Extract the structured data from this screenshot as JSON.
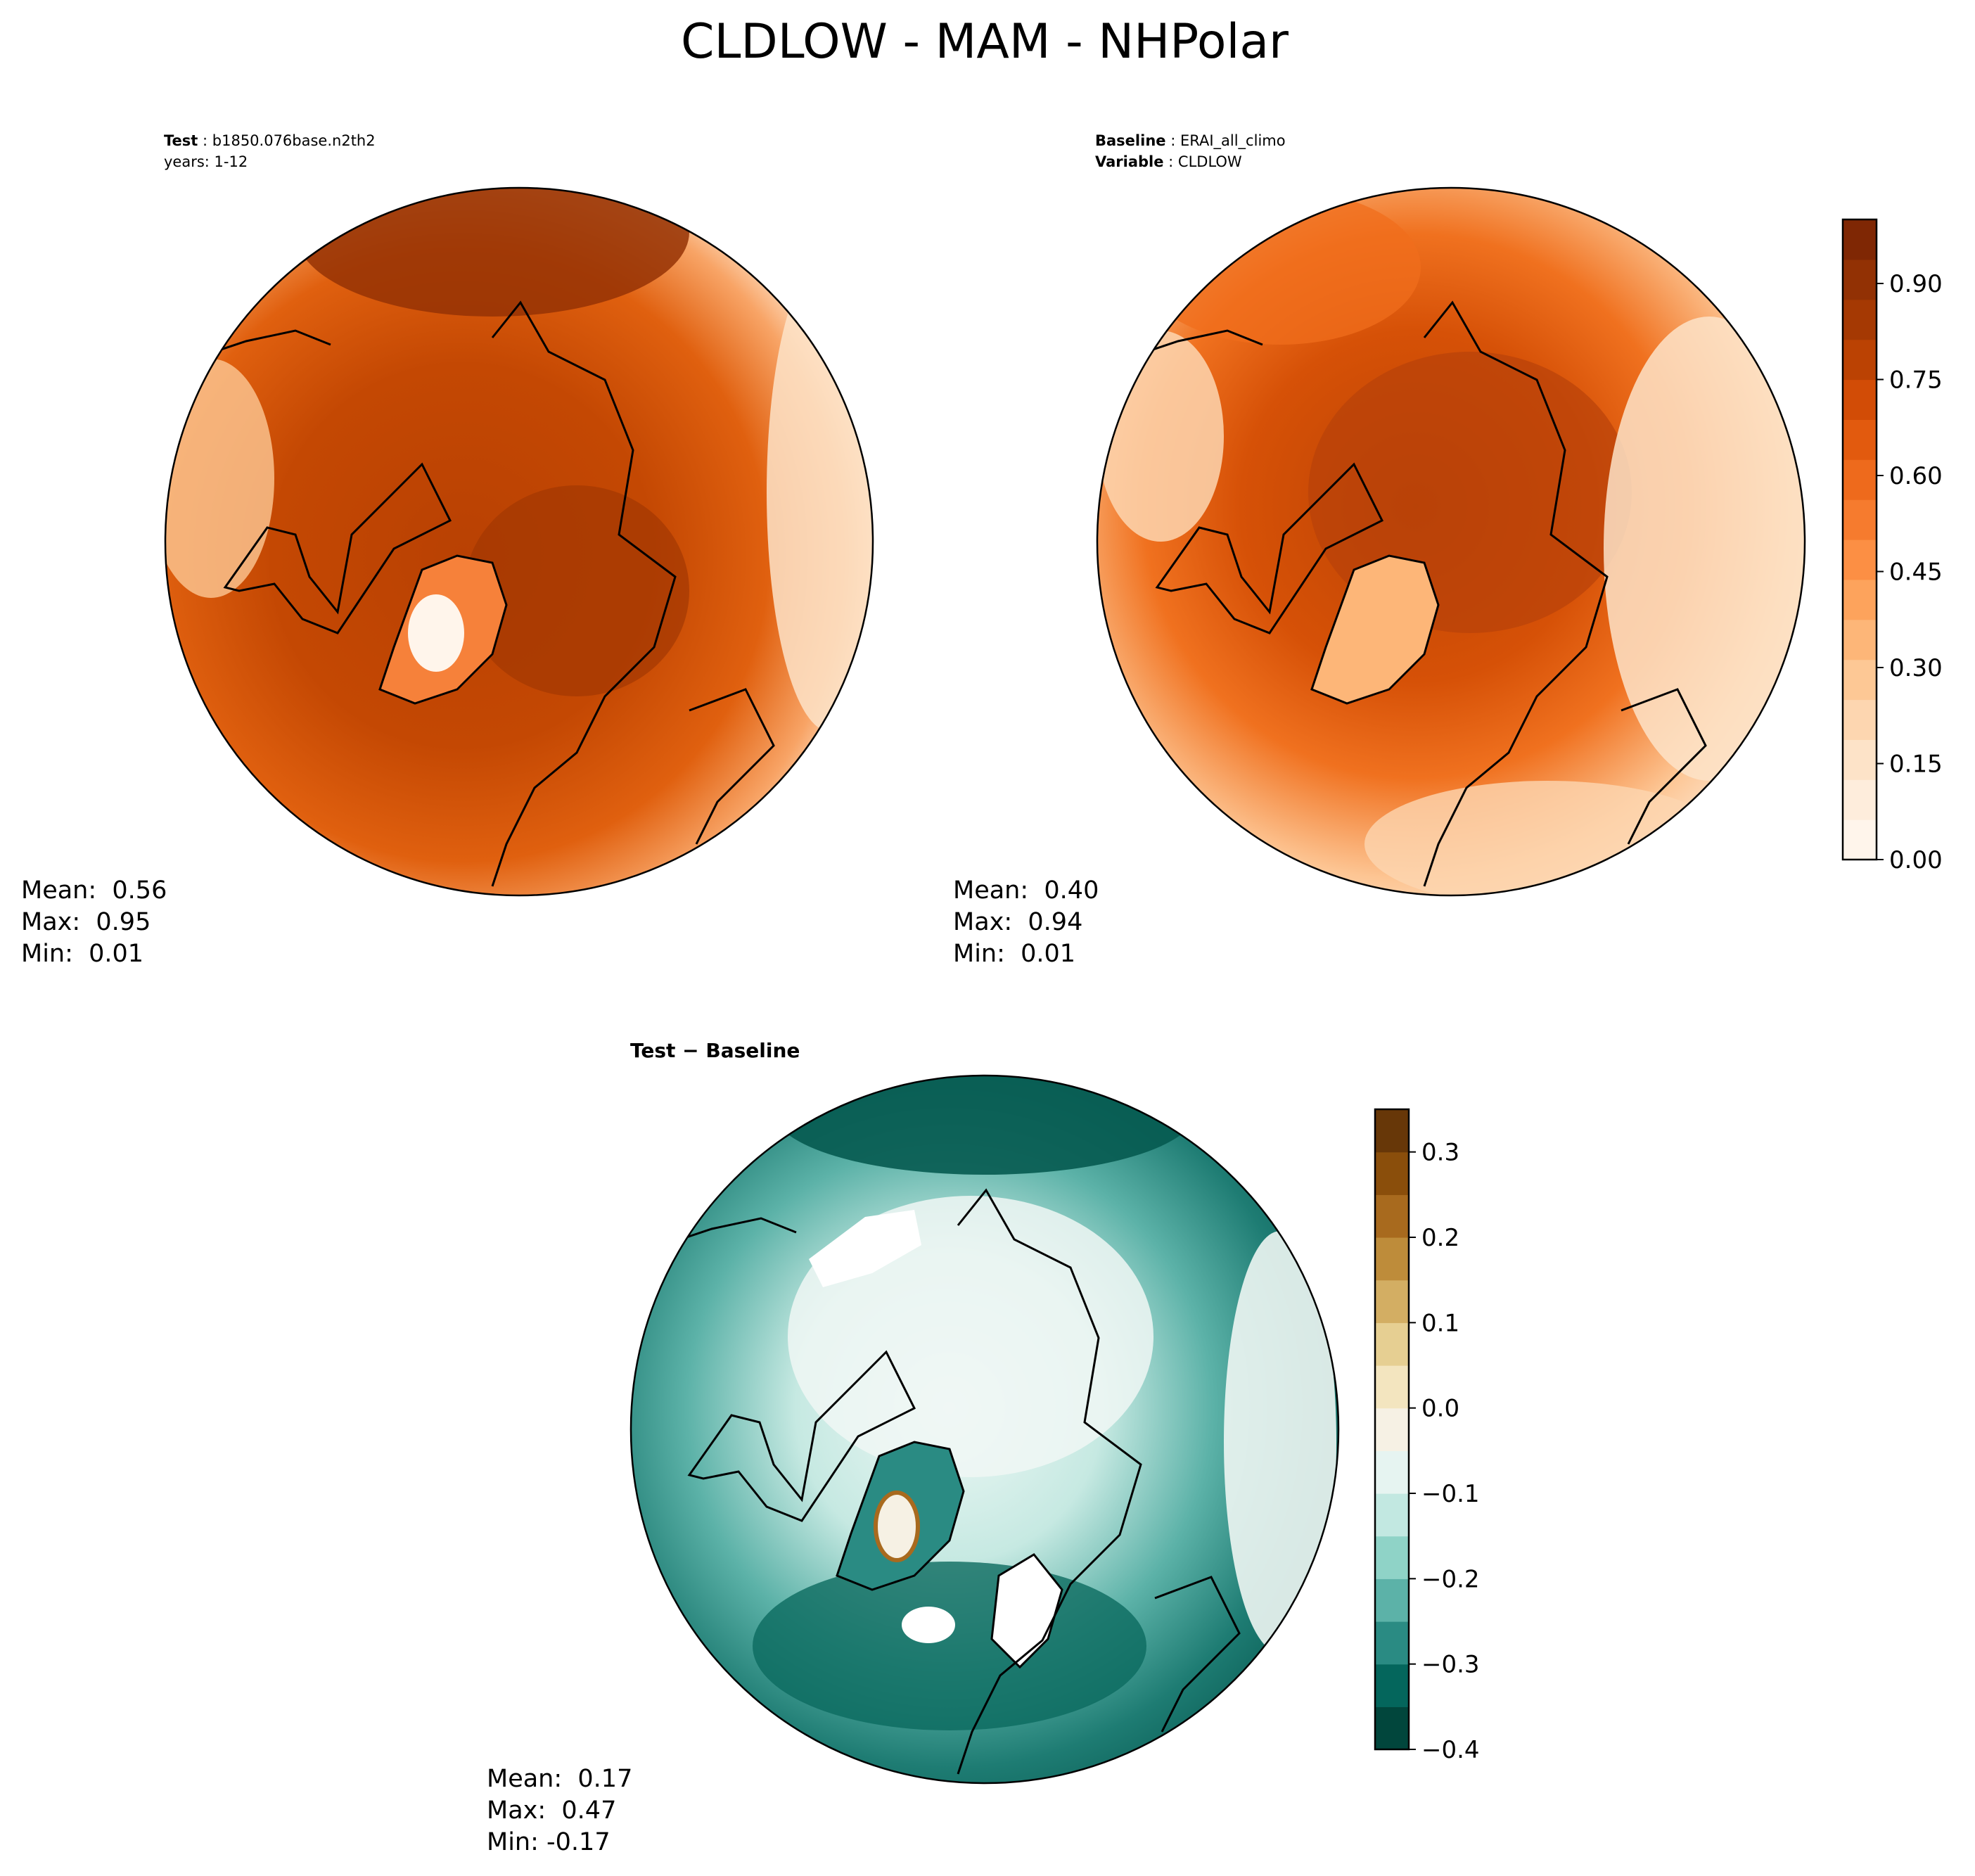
{
  "figure": {
    "title": "CLDLOW - MAM - NHPolar"
  },
  "panels": {
    "test": {
      "header_key1": "Test",
      "header_val1": "b1850.076base.n2th2",
      "header_line2": "years: 1-12",
      "stats": [
        "Mean:  0.56",
        "Max:  0.95",
        "Min:  0.01"
      ]
    },
    "baseline": {
      "header_key1": "Baseline",
      "header_val1": "ERAI_all_climo",
      "header_key2": "Variable",
      "header_val2": "CLDLOW",
      "stats": [
        "Mean:  0.40",
        "Max:  0.94",
        "Min:  0.01"
      ]
    },
    "diff": {
      "header": "Test − Baseline",
      "stats": [
        "Mean:  0.17",
        "Max:  0.47",
        "Min: -0.17"
      ]
    }
  },
  "chart_data": [
    {
      "type": "heatmap",
      "projection": "north-polar-stereographic",
      "panel": "Test",
      "mean": 0.56,
      "max": 0.95,
      "min": 0.01,
      "colormap": "Oranges"
    },
    {
      "type": "heatmap",
      "projection": "north-polar-stereographic",
      "panel": "Baseline",
      "mean": 0.4,
      "max": 0.94,
      "min": 0.01,
      "colormap": "Oranges"
    },
    {
      "type": "heatmap",
      "projection": "north-polar-stereographic",
      "panel": "Test - Baseline",
      "mean": 0.17,
      "max": 0.47,
      "min": -0.17,
      "colormap": "BrBG"
    }
  ],
  "colorbars": {
    "sequential": {
      "range": [
        0.0,
        1.0
      ],
      "ticks": [
        "0.00",
        "0.15",
        "0.30",
        "0.45",
        "0.60",
        "0.75",
        "0.90"
      ],
      "tick_values": [
        0.0,
        0.15,
        0.3,
        0.45,
        0.6,
        0.75,
        0.9
      ],
      "colors": [
        "#fff5eb",
        "#feeddc",
        "#fde3c8",
        "#fdd6b0",
        "#fdc895",
        "#fdb678",
        "#fda35c",
        "#fc8f44",
        "#f67b2e",
        "#ee6a1c",
        "#e25a0e",
        "#d24c06",
        "#bb4203",
        "#a53903",
        "#923104",
        "#7f2704"
      ]
    },
    "diverging": {
      "range": [
        -0.4,
        0.35
      ],
      "ticks": [
        "0.3",
        "0.2",
        "0.1",
        "0.0",
        "−0.1",
        "−0.2",
        "−0.3",
        "−0.4"
      ],
      "tick_values": [
        0.3,
        0.2,
        0.1,
        0.0,
        -0.1,
        -0.2,
        -0.3,
        -0.4
      ],
      "colors": [
        "#01463c",
        "#04665c",
        "#2a8b83",
        "#5cb2a8",
        "#8fd3c7",
        "#c2e8e1",
        "#e6f4f1",
        "#f6f1e4",
        "#f3e5bf",
        "#e6cf92",
        "#d3ae63",
        "#be8c3a",
        "#a86a1e",
        "#8a4e0b",
        "#673708"
      ]
    }
  },
  "colors": {
    "land_outline": "#000000",
    "background": "#ffffff"
  }
}
